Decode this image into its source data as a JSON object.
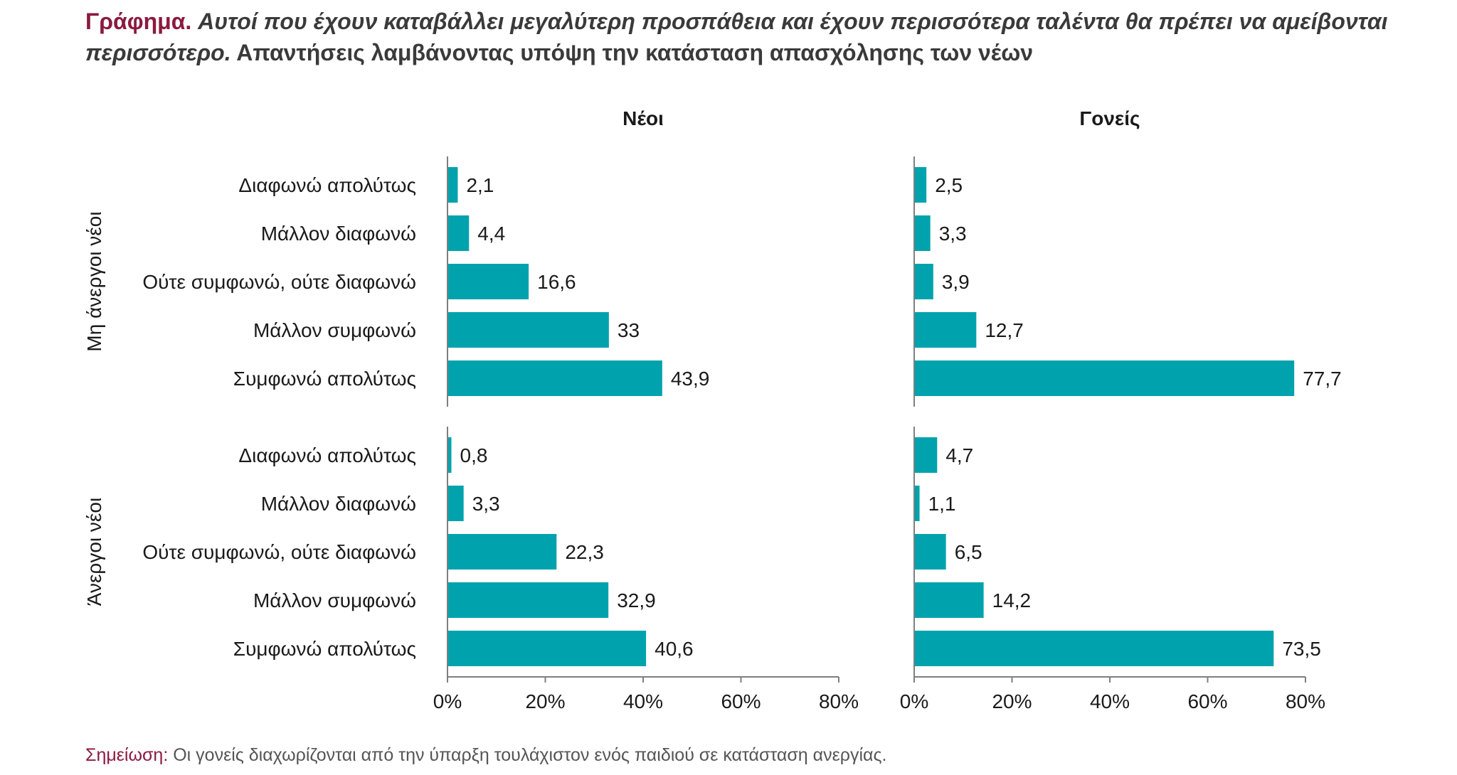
{
  "title": {
    "prefix": "Γράφημα.",
    "italic": "Αυτοί που έχουν καταβάλλει μεγαλύτερη προσπάθεια και έχουν περισσότερα ταλέντα θα πρέπει να αμείβονται περισσότερο.",
    "rest": "Απαντήσεις λαμβάνοντας υπόψη την κατάσταση απασχόλησης των νέων"
  },
  "note": {
    "prefix": "Σημείωση:",
    "text": "Οι γονείς διαχωρίζονται από την ύπαρξη τουλάχιστον ενός παιδιού σε κατάσταση ανεργίας."
  },
  "colors": {
    "bar": "#00a3ad",
    "axis": "#7f7f7f",
    "text": "#1a1a1a"
  },
  "chart_data": {
    "type": "bar",
    "orientation": "horizontal",
    "columns": [
      "Νέοι",
      "Γονείς"
    ],
    "groups": [
      "Μη άνεργοι νέοι",
      "Άνεργοι νέοι"
    ],
    "categories": [
      "Διαφωνώ απολύτως",
      "Μάλλον διαφωνώ",
      "Ούτε συμφωνώ, ούτε διαφωνώ",
      "Μάλλον συμφωνώ",
      "Συμφωνώ απολύτως"
    ],
    "values": {
      "Νέοι": {
        "Μη άνεργοι νέοι": [
          2.1,
          4.4,
          16.6,
          33,
          43.9
        ],
        "Άνεργοι νέοι": [
          0.8,
          3.3,
          22.3,
          32.9,
          40.6
        ]
      },
      "Γονείς": {
        "Μη άνεργοι νέοι": [
          2.5,
          3.3,
          3.9,
          12.7,
          77.7
        ],
        "Άνεργοι νέοι": [
          4.7,
          1.1,
          6.5,
          14.2,
          73.5
        ]
      }
    },
    "value_labels": {
      "Νέοι": {
        "Μη άνεργοι νέοι": [
          "2,1",
          "4,4",
          "16,6",
          "33",
          "43,9"
        ],
        "Άνεργοι νέοι": [
          "0,8",
          "3,3",
          "22,3",
          "32,9",
          "40,6"
        ]
      },
      "Γονείς": {
        "Μη άνεργοι νέοι": [
          "2,5",
          "3,3",
          "3,9",
          "12,7",
          "77,7"
        ],
        "Άνεργοι νέοι": [
          "4,7",
          "1,1",
          "6,5",
          "14,2",
          "73,5"
        ]
      }
    },
    "xlim": [
      0,
      80
    ],
    "xticks": [
      0,
      20,
      40,
      60,
      80
    ],
    "xtick_labels": [
      "0%",
      "20%",
      "40%",
      "60%",
      "80%"
    ],
    "unit": "%"
  }
}
